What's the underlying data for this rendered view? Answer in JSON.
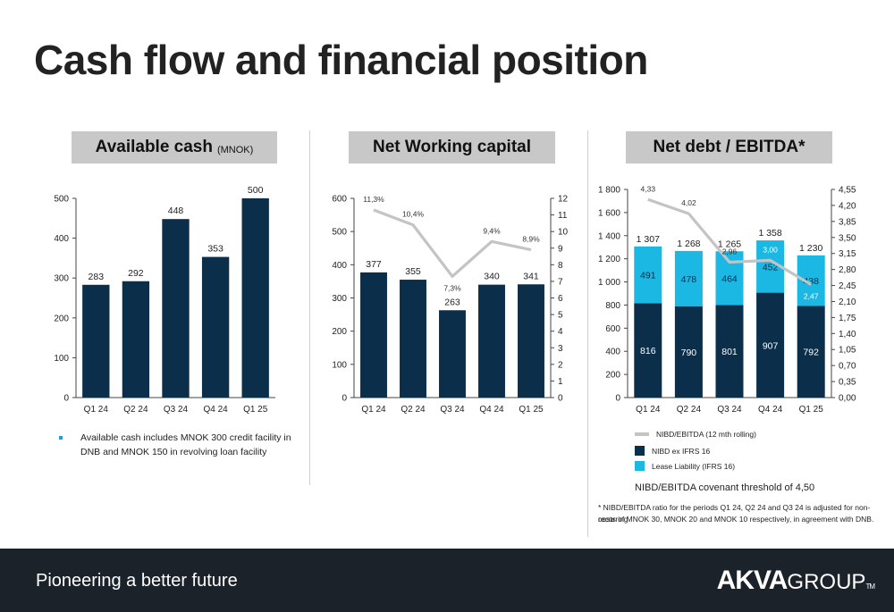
{
  "page": {
    "title": "Cash flow and financial position",
    "tagline": "Pioneering a better future",
    "logo": {
      "bold": "AKVA",
      "light": "GROUP",
      "tm": "TM"
    }
  },
  "colors": {
    "navy": "#0b2e4a",
    "cyan": "#1ab8e3",
    "line": "#c4c4c4",
    "header_bg": "#c8c8c8",
    "footer_bg": "#1c222a"
  },
  "panels": {
    "cash": {
      "heading": "Available cash",
      "heading_unit": "(MNOK)",
      "note": "Available cash includes MNOK 300 credit facility in DNB and MNOK 150 in revolving loan facility"
    },
    "nwc": {
      "heading": "Net Working capital"
    },
    "debt": {
      "heading": "Net debt / EBITDA*",
      "legend": [
        {
          "label": "NIBD/EBITDA  (12 mth rolling)",
          "color": "#c4c4c4",
          "kind": "line"
        },
        {
          "label": "NIBD ex IFRS 16",
          "color": "#0b2e4a",
          "kind": "box"
        },
        {
          "label": "Lease Liability (IFRS 16)",
          "color": "#1ab8e3",
          "kind": "box"
        }
      ],
      "covenant": "NIBD/EBITDA covenant threshold of 4,50",
      "footnote_1": "* NIBD/EBITDA ratio for the periods Q1 24, Q2 24 and Q3 24 is adjusted for non-recurring",
      "footnote_2": "costs of MNOK 30, MNOK 20 and MNOK 10 respectively, in agreement with DNB."
    }
  },
  "chart_data": [
    {
      "type": "bar",
      "title": "Available cash (MNOK)",
      "categories": [
        "Q1 24",
        "Q2 24",
        "Q3 24",
        "Q4 24",
        "Q1 25"
      ],
      "values": [
        283,
        292,
        448,
        353,
        500
      ],
      "labels": [
        "283",
        "292",
        "448",
        "353",
        "500"
      ],
      "ylim": [
        0,
        500
      ],
      "yticks": [
        "0",
        "100",
        "200",
        "300",
        "400",
        "500"
      ],
      "ytick_values": [
        0,
        100,
        200,
        300,
        400,
        500
      ]
    },
    {
      "type": "bar",
      "title": "Net Working capital",
      "categories": [
        "Q1 24",
        "Q2 24",
        "Q3 24",
        "Q4 24",
        "Q1 25"
      ],
      "values": [
        377,
        355,
        263,
        340,
        341
      ],
      "labels": [
        "377",
        "355",
        "263",
        "340",
        "341"
      ],
      "ylim": [
        0,
        600
      ],
      "yticks": [
        "0",
        "100",
        "200",
        "300",
        "400",
        "500",
        "600"
      ],
      "ytick_values": [
        0,
        100,
        200,
        300,
        400,
        500,
        600
      ],
      "line_series": {
        "values": [
          11.3,
          10.4,
          7.3,
          9.4,
          8.9
        ],
        "labels": [
          "11,3%",
          "10,4%",
          "7,3%",
          "9,4%",
          "8,9%"
        ],
        "ylim": [
          0,
          12
        ],
        "yticks": [
          "0",
          "1",
          "2",
          "3",
          "4",
          "5",
          "6",
          "7",
          "8",
          "9",
          "10",
          "11",
          "12"
        ],
        "ytick_values": [
          0,
          1,
          2,
          3,
          4,
          5,
          6,
          7,
          8,
          9,
          10,
          11,
          12
        ]
      }
    },
    {
      "type": "bar",
      "stacked": true,
      "title": "Net debt / EBITDA*",
      "categories": [
        "Q1 24",
        "Q2 24",
        "Q3 24",
        "Q4 24",
        "Q1 25"
      ],
      "series": [
        {
          "name": "NIBD ex IFRS 16",
          "values": [
            816,
            790,
            801,
            907,
            792
          ],
          "labels": [
            "816",
            "790",
            "801",
            "907",
            "792"
          ]
        },
        {
          "name": "Lease Liability (IFRS 16)",
          "values": [
            491,
            478,
            464,
            452,
            438
          ],
          "labels": [
            "491",
            "478",
            "464",
            "452",
            "438"
          ]
        }
      ],
      "totals": [
        "1 307",
        "1 268",
        "1 265",
        "1 358",
        "1 230"
      ],
      "ylim": [
        0,
        1800
      ],
      "yticks": [
        "0",
        "200",
        "400",
        "600",
        "800",
        "1 000",
        "1 200",
        "1 400",
        "1 600",
        "1 800"
      ],
      "ytick_values": [
        0,
        200,
        400,
        600,
        800,
        1000,
        1200,
        1400,
        1600,
        1800
      ],
      "line_series": {
        "name": "NIBD/EBITDA  (12 mth rolling)",
        "values": [
          4.33,
          4.02,
          2.96,
          3.0,
          2.47
        ],
        "labels": [
          "4,33",
          "4,02",
          "2,96",
          "3,00",
          "2,47"
        ],
        "ylim": [
          0,
          4.55
        ],
        "yticks": [
          "0,00",
          "0,35",
          "0,70",
          "1,05",
          "1,40",
          "1,75",
          "2,10",
          "2,45",
          "2,80",
          "3,15",
          "3,50",
          "3,85",
          "4,20",
          "4,55"
        ],
        "ytick_values": [
          0,
          0.35,
          0.7,
          1.05,
          1.4,
          1.75,
          2.1,
          2.45,
          2.8,
          3.15,
          3.5,
          3.85,
          4.2,
          4.55
        ]
      }
    }
  ]
}
